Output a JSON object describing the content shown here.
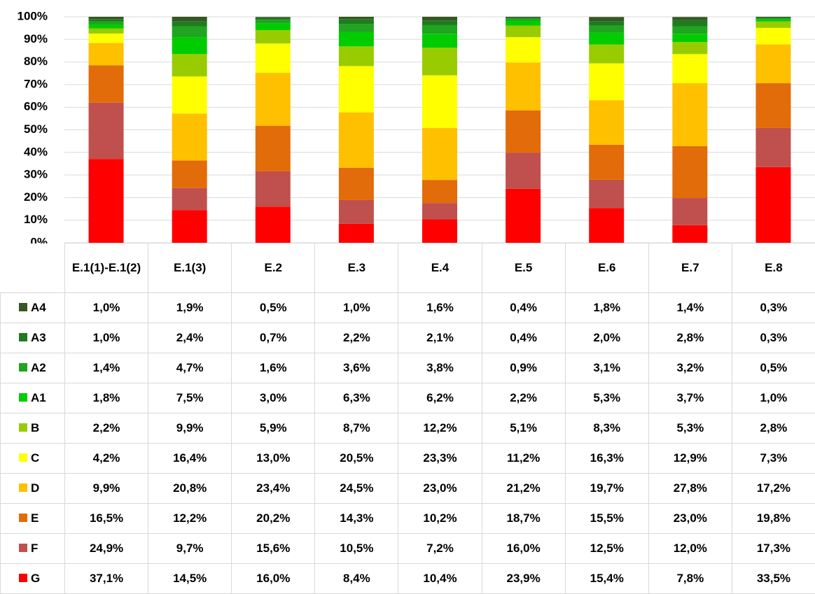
{
  "chart_data": {
    "type": "bar",
    "stacked": true,
    "categories": [
      "E.1(1)-E.1(2)",
      "E.1(3)",
      "E.2",
      "E.3",
      "E.4",
      "E.5",
      "E.6",
      "E.7",
      "E.8"
    ],
    "ylim": [
      0,
      100
    ],
    "yticks": [
      {
        "value": 0,
        "label": "0%"
      },
      {
        "value": 10,
        "label": "10%"
      },
      {
        "value": 20,
        "label": "20%"
      },
      {
        "value": 30,
        "label": "30%"
      },
      {
        "value": 40,
        "label": "40%"
      },
      {
        "value": 50,
        "label": "50%"
      },
      {
        "value": 60,
        "label": "60%"
      },
      {
        "value": 70,
        "label": "70%"
      },
      {
        "value": 80,
        "label": "80%"
      },
      {
        "value": 90,
        "label": "90%"
      },
      {
        "value": 100,
        "label": "100%"
      }
    ],
    "grid": true,
    "series": [
      {
        "name": "A4",
        "color": "#375623",
        "values": [
          1.0,
          1.9,
          0.5,
          1.0,
          1.6,
          0.4,
          1.8,
          1.4,
          0.3
        ],
        "value_labels": [
          "1,0%",
          "1,9%",
          "0,5%",
          "1,0%",
          "1,6%",
          "0,4%",
          "1,8%",
          "1,4%",
          "0,3%"
        ]
      },
      {
        "name": "A3",
        "color": "#1e7b1e",
        "values": [
          1.0,
          2.4,
          0.7,
          2.2,
          2.1,
          0.4,
          2.0,
          2.8,
          0.3
        ],
        "value_labels": [
          "1,0%",
          "2,4%",
          "0,7%",
          "2,2%",
          "2,1%",
          "0,4%",
          "2,0%",
          "2,8%",
          "0,3%"
        ]
      },
      {
        "name": "A2",
        "color": "#1fa51f",
        "values": [
          1.4,
          4.7,
          1.6,
          3.6,
          3.8,
          0.9,
          3.1,
          3.2,
          0.5
        ],
        "value_labels": [
          "1,4%",
          "4,7%",
          "1,6%",
          "3,6%",
          "3,8%",
          "0,9%",
          "3,1%",
          "3,2%",
          "0,5%"
        ]
      },
      {
        "name": "A1",
        "color": "#00cc00",
        "values": [
          1.8,
          7.5,
          3.0,
          6.3,
          6.2,
          2.2,
          5.3,
          3.7,
          1.0
        ],
        "value_labels": [
          "1,8%",
          "7,5%",
          "3,0%",
          "6,3%",
          "6,2%",
          "2,2%",
          "5,3%",
          "3,7%",
          "1,0%"
        ]
      },
      {
        "name": "B",
        "color": "#99cc00",
        "values": [
          2.2,
          9.9,
          5.9,
          8.7,
          12.2,
          5.1,
          8.3,
          5.3,
          2.8
        ],
        "value_labels": [
          "2,2%",
          "9,9%",
          "5,9%",
          "8,7%",
          "12,2%",
          "5,1%",
          "8,3%",
          "5,3%",
          "2,8%"
        ]
      },
      {
        "name": "C",
        "color": "#ffff00",
        "values": [
          4.2,
          16.4,
          13.0,
          20.5,
          23.3,
          11.2,
          16.3,
          12.9,
          7.3
        ],
        "value_labels": [
          "4,2%",
          "16,4%",
          "13,0%",
          "20,5%",
          "23,3%",
          "11,2%",
          "16,3%",
          "12,9%",
          "7,3%"
        ]
      },
      {
        "name": "D",
        "color": "#ffc000",
        "values": [
          9.9,
          20.8,
          23.4,
          24.5,
          23.0,
          21.2,
          19.7,
          27.8,
          17.2
        ],
        "value_labels": [
          "9,9%",
          "20,8%",
          "23,4%",
          "24,5%",
          "23,0%",
          "21,2%",
          "19,7%",
          "27,8%",
          "17,2%"
        ]
      },
      {
        "name": "E",
        "color": "#e26b0a",
        "values": [
          16.5,
          12.2,
          20.2,
          14.3,
          10.2,
          18.7,
          15.5,
          23.0,
          19.8
        ],
        "value_labels": [
          "16,5%",
          "12,2%",
          "20,2%",
          "14,3%",
          "10,2%",
          "18,7%",
          "15,5%",
          "23,0%",
          "19,8%"
        ]
      },
      {
        "name": "F",
        "color": "#c0504d",
        "values": [
          24.9,
          9.7,
          15.6,
          10.5,
          7.2,
          16.0,
          12.5,
          12.0,
          17.3
        ],
        "value_labels": [
          "24,9%",
          "9,7%",
          "15,6%",
          "10,5%",
          "7,2%",
          "16,0%",
          "12,5%",
          "12,0%",
          "17,3%"
        ]
      },
      {
        "name": "G",
        "color": "#ff0000",
        "values": [
          37.1,
          14.5,
          16.0,
          8.4,
          10.4,
          23.9,
          15.4,
          7.8,
          33.5
        ],
        "value_labels": [
          "37,1%",
          "14,5%",
          "16,0%",
          "8,4%",
          "10,4%",
          "23,9%",
          "15,4%",
          "7,8%",
          "33,5%"
        ]
      }
    ]
  }
}
